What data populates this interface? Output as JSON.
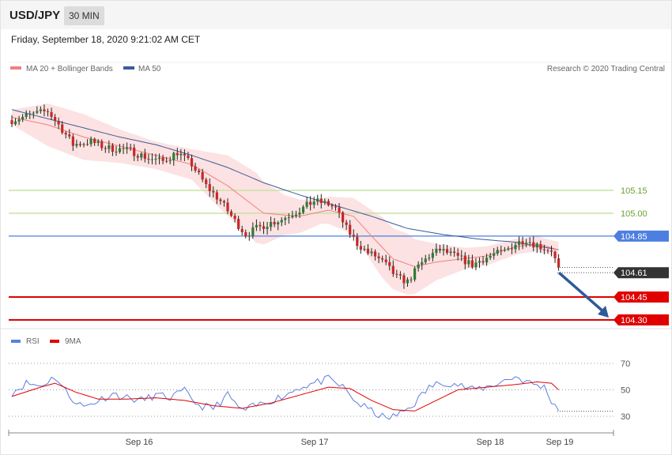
{
  "header": {
    "pair": "USD/JPY",
    "timeframe": "30 MIN"
  },
  "date_text": "Friday, September 18, 2020 9:21:02 AM CET",
  "credit": "Research © 2020 Trading Central",
  "colors": {
    "bb": "#f08080",
    "ma50": "#3c5a9a",
    "green_lvl": "#b5d98a",
    "blue_lvl": "#4d7fe0",
    "red_lvl": "#e00000",
    "up": "#2e7d32",
    "down": "#c62828",
    "rsi": "#5c7fe0",
    "rsi_ma": "#e00000",
    "arrow": "#2f5a99"
  },
  "chart_data": [
    {
      "type": "line",
      "legend": [
        {
          "name": "MA 20 + Bollinger Bands",
          "color": "#f08080"
        },
        {
          "name": "MA 50",
          "color": "#3c5a9a"
        }
      ],
      "ylim": [
        104.2,
        105.8
      ],
      "levels": [
        {
          "value": 105.15,
          "label": "105.15",
          "color": "#8bbe55",
          "style": "line"
        },
        {
          "value": 105.0,
          "label": "105.00",
          "color": "#8bbe55",
          "style": "line"
        },
        {
          "value": 104.85,
          "label": "104.85",
          "color": "#4d7fe0",
          "style": "box"
        },
        {
          "value": 104.61,
          "label": "104.61",
          "color": "#333333",
          "style": "box"
        },
        {
          "value": 104.45,
          "label": "104.45",
          "color": "#e00000",
          "style": "box"
        },
        {
          "value": 104.3,
          "label": "104.30",
          "color": "#e00000",
          "style": "box"
        }
      ],
      "x_ticks": [
        "Sep 16",
        "Sep 17",
        "Sep 18",
        "Sep 19"
      ],
      "price_keypoints": [
        [
          0,
          105.61
        ],
        [
          6,
          105.65
        ],
        [
          10,
          105.67
        ],
        [
          14,
          105.55
        ],
        [
          17,
          105.45
        ],
        [
          22,
          105.47
        ],
        [
          26,
          105.43
        ],
        [
          30,
          105.42
        ],
        [
          33,
          105.41
        ],
        [
          38,
          105.36
        ],
        [
          42,
          105.34
        ],
        [
          46,
          105.4
        ],
        [
          50,
          105.32
        ],
        [
          54,
          105.18
        ],
        [
          58,
          105.08
        ],
        [
          62,
          104.95
        ],
        [
          65,
          104.86
        ],
        [
          68,
          104.9
        ],
        [
          71,
          104.93
        ],
        [
          75,
          104.96
        ],
        [
          78,
          105.0
        ],
        [
          80,
          105.02
        ],
        [
          84,
          105.08
        ],
        [
          88,
          105.06
        ],
        [
          90,
          105.03
        ],
        [
          93,
          104.9
        ],
        [
          96,
          104.8
        ],
        [
          99,
          104.74
        ],
        [
          101,
          104.72
        ],
        [
          104,
          104.66
        ],
        [
          107,
          104.58
        ],
        [
          110,
          104.55
        ],
        [
          113,
          104.65
        ],
        [
          116,
          104.72
        ],
        [
          119,
          104.76
        ],
        [
          122,
          104.73
        ],
        [
          125,
          104.7
        ],
        [
          128,
          104.66
        ],
        [
          131,
          104.7
        ],
        [
          134,
          104.73
        ],
        [
          137,
          104.75
        ],
        [
          140,
          104.8
        ],
        [
          143,
          104.83
        ],
        [
          145,
          104.8
        ],
        [
          148,
          104.77
        ],
        [
          150,
          104.76
        ],
        [
          152,
          104.63
        ]
      ],
      "ma20_keypoints": [
        [
          0,
          105.63
        ],
        [
          10,
          105.58
        ],
        [
          20,
          105.5
        ],
        [
          30,
          105.44
        ],
        [
          40,
          105.38
        ],
        [
          50,
          105.32
        ],
        [
          60,
          105.18
        ],
        [
          70,
          105.0
        ],
        [
          80,
          104.98
        ],
        [
          88,
          105.02
        ],
        [
          95,
          104.98
        ],
        [
          100,
          104.85
        ],
        [
          106,
          104.7
        ],
        [
          112,
          104.65
        ],
        [
          118,
          104.68
        ],
        [
          125,
          104.7
        ],
        [
          132,
          104.72
        ],
        [
          140,
          104.78
        ],
        [
          146,
          104.8
        ],
        [
          152,
          104.76
        ]
      ],
      "bb_width_keypoints": [
        [
          0,
          0.05
        ],
        [
          10,
          0.14
        ],
        [
          20,
          0.15
        ],
        [
          30,
          0.11
        ],
        [
          40,
          0.09
        ],
        [
          50,
          0.1
        ],
        [
          60,
          0.2
        ],
        [
          68,
          0.23
        ],
        [
          76,
          0.13
        ],
        [
          86,
          0.08
        ],
        [
          95,
          0.12
        ],
        [
          103,
          0.2
        ],
        [
          110,
          0.2
        ],
        [
          118,
          0.12
        ],
        [
          126,
          0.07
        ],
        [
          134,
          0.06
        ],
        [
          142,
          0.05
        ],
        [
          152,
          0.05
        ]
      ],
      "ma50_keypoints": [
        [
          0,
          105.68
        ],
        [
          10,
          105.62
        ],
        [
          20,
          105.56
        ],
        [
          30,
          105.5
        ],
        [
          40,
          105.45
        ],
        [
          50,
          105.38
        ],
        [
          60,
          105.3
        ],
        [
          70,
          105.2
        ],
        [
          80,
          105.12
        ],
        [
          90,
          105.05
        ],
        [
          100,
          104.98
        ],
        [
          110,
          104.9
        ],
        [
          120,
          104.86
        ],
        [
          130,
          104.83
        ],
        [
          140,
          104.81
        ],
        [
          152,
          104.76
        ]
      ],
      "forecast_arrow": {
        "from": 104.61,
        "to": 104.3
      }
    },
    {
      "type": "line",
      "legend": [
        {
          "name": "RSI",
          "color": "#5c7fe0"
        },
        {
          "name": "9MA",
          "color": "#e00000"
        }
      ],
      "ylim": [
        17,
        80
      ],
      "levels": [
        {
          "value": 70,
          "label": "70"
        },
        {
          "value": 50,
          "label": "50"
        },
        {
          "value": 30,
          "label": "30"
        }
      ],
      "rsi_keypoints": [
        [
          0,
          48
        ],
        [
          4,
          55
        ],
        [
          8,
          53
        ],
        [
          12,
          60
        ],
        [
          16,
          45
        ],
        [
          20,
          37
        ],
        [
          24,
          42
        ],
        [
          28,
          47
        ],
        [
          32,
          44
        ],
        [
          36,
          42
        ],
        [
          40,
          46
        ],
        [
          44,
          44
        ],
        [
          48,
          49
        ],
        [
          52,
          38
        ],
        [
          56,
          36
        ],
        [
          60,
          46
        ],
        [
          64,
          34
        ],
        [
          68,
          38
        ],
        [
          72,
          42
        ],
        [
          76,
          46
        ],
        [
          80,
          52
        ],
        [
          84,
          55
        ],
        [
          88,
          58
        ],
        [
          92,
          52
        ],
        [
          96,
          40
        ],
        [
          100,
          34
        ],
        [
          104,
          28
        ],
        [
          108,
          32
        ],
        [
          112,
          40
        ],
        [
          116,
          52
        ],
        [
          120,
          56
        ],
        [
          124,
          54
        ],
        [
          128,
          50
        ],
        [
          132,
          52
        ],
        [
          136,
          56
        ],
        [
          140,
          60
        ],
        [
          144,
          55
        ],
        [
          148,
          52
        ],
        [
          150,
          42
        ],
        [
          152,
          35
        ]
      ],
      "rsi_ma_keypoints": [
        [
          0,
          45
        ],
        [
          8,
          52
        ],
        [
          12,
          55
        ],
        [
          18,
          48
        ],
        [
          24,
          43
        ],
        [
          32,
          43
        ],
        [
          40,
          44
        ],
        [
          48,
          42
        ],
        [
          56,
          38
        ],
        [
          64,
          36
        ],
        [
          72,
          40
        ],
        [
          80,
          46
        ],
        [
          88,
          52
        ],
        [
          94,
          51
        ],
        [
          100,
          42
        ],
        [
          106,
          35
        ],
        [
          112,
          34
        ],
        [
          118,
          42
        ],
        [
          124,
          50
        ],
        [
          132,
          52
        ],
        [
          140,
          54
        ],
        [
          146,
          56
        ],
        [
          150,
          55
        ],
        [
          152,
          50
        ]
      ]
    }
  ]
}
